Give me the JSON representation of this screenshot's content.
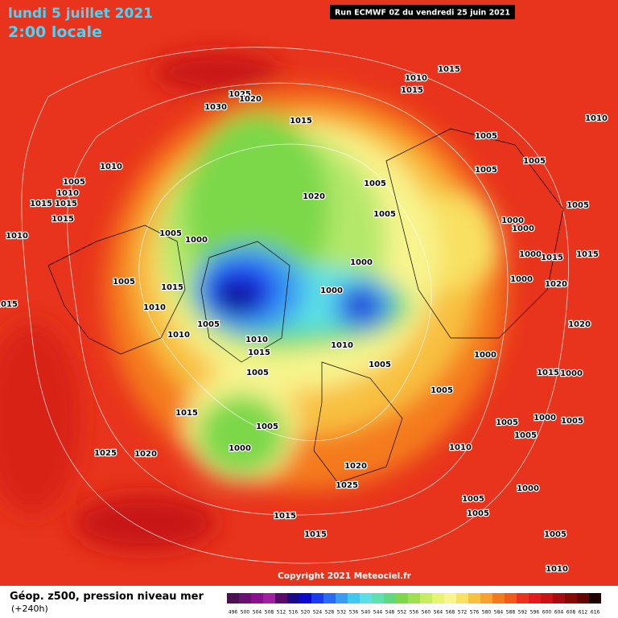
{
  "header": {
    "title": "lundi 5 juillet 2021",
    "subtitle": "2:00 locale",
    "run": "Run ECMWF 0Z du vendredi 25 juin 2021"
  },
  "footer": {
    "copyright": "Copyright 2021 Meteociel.fr"
  },
  "legend": {
    "title": "Géop. z500, pression niveau mer",
    "subtitle": "(+240h)",
    "scale_labels": [
      496,
      500,
      504,
      508,
      512,
      516,
      520,
      524,
      528,
      532,
      536,
      540,
      544,
      548,
      552,
      556,
      560,
      564,
      568,
      572,
      576,
      580,
      584,
      588,
      592,
      596,
      600,
      604,
      608,
      612,
      616
    ],
    "scale_colors": [
      "#4a1050",
      "#6a1070",
      "#8a1090",
      "#a020a0",
      "#5a0a6a",
      "#1a0a8a",
      "#0a0ac8",
      "#1a3cf0",
      "#2a6cf0",
      "#3a9cf0",
      "#40c8f0",
      "#5ce0e6",
      "#60e0b0",
      "#60d880",
      "#7cd84a",
      "#a0e050",
      "#c8ec60",
      "#e8f470",
      "#f8f48e",
      "#f8e060",
      "#f8c040",
      "#f8a030",
      "#f47a1e",
      "#f05a1a",
      "#e8341c",
      "#e01c1c",
      "#c81414",
      "#a80c10",
      "#880808",
      "#600404",
      "#200000"
    ]
  },
  "isobar_labels": [
    "1010",
    "1015",
    "1015",
    "1025",
    "1020",
    "1030",
    "1015",
    "1010",
    "1010",
    "1005",
    "1010",
    "1015",
    "1015",
    "1015",
    "1010",
    "1005",
    "1000",
    "1020",
    "1005",
    "1005",
    "1005",
    "1005",
    "1005",
    "1005",
    "1000",
    "1000",
    "1000",
    "1000",
    "1005",
    "1015",
    "1010",
    "1010",
    "1005",
    "1010",
    "1015",
    "1005",
    "1010",
    "1005",
    "1005",
    "1000",
    "1015",
    "1005",
    "1000",
    "1025",
    "1020",
    "1020",
    "1025",
    "1010",
    "1005",
    "1005",
    "1015",
    "1015",
    "1005",
    "1005",
    "1000",
    "1005",
    "1010",
    "1015",
    "1015",
    "1000",
    "1000",
    "1005",
    "1020",
    "1020",
    "1000",
    "1000",
    "1015",
    "1015"
  ]
}
